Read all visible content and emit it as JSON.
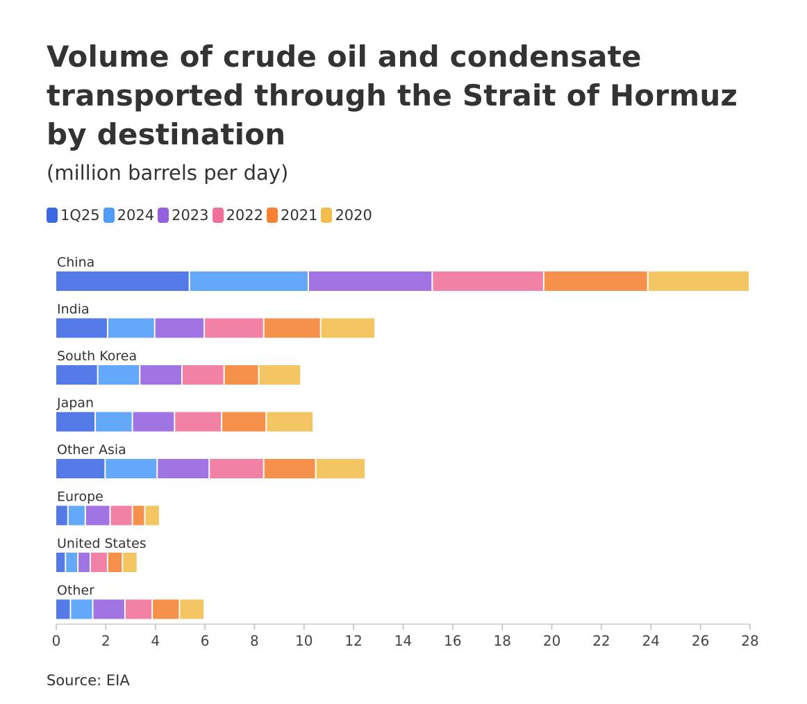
{
  "chart_data": {
    "type": "bar",
    "orientation": "horizontal",
    "stacked": true,
    "title": "Volume of crude oil and condensate transported through the Strait of Hormuz by destination",
    "subtitle": "(million barrels per day)",
    "source": "Source: EIA",
    "categories": [
      "China",
      "India",
      "South Korea",
      "Japan",
      "Other Asia",
      "Europe",
      "United States",
      "Other"
    ],
    "series": [
      {
        "name": "1Q25",
        "color": "#3b68e3",
        "values": [
          5.4,
          2.1,
          1.7,
          1.6,
          2.0,
          0.5,
          0.4,
          0.6
        ]
      },
      {
        "name": "2024",
        "color": "#4f9cf9",
        "values": [
          4.8,
          1.9,
          1.7,
          1.5,
          2.1,
          0.7,
          0.5,
          0.9
        ]
      },
      {
        "name": "2023",
        "color": "#9361de",
        "values": [
          5.0,
          2.0,
          1.7,
          1.7,
          2.1,
          1.0,
          0.5,
          1.3
        ]
      },
      {
        "name": "2022",
        "color": "#f07198",
        "values": [
          4.5,
          2.4,
          1.7,
          1.9,
          2.2,
          0.9,
          0.7,
          1.1
        ]
      },
      {
        "name": "2021",
        "color": "#f58232",
        "values": [
          4.2,
          2.3,
          1.4,
          1.8,
          2.1,
          0.5,
          0.6,
          1.1
        ]
      },
      {
        "name": "2020",
        "color": "#f2bd4d",
        "values": [
          4.1,
          2.2,
          1.7,
          1.9,
          2.0,
          0.6,
          0.6,
          1.0
        ]
      }
    ],
    "xlim": [
      0,
      28
    ],
    "xticks": [
      0,
      2,
      4,
      6,
      8,
      10,
      12,
      14,
      16,
      18,
      20,
      22,
      24,
      26,
      28
    ],
    "grid": false,
    "legend_position": "top-left"
  }
}
